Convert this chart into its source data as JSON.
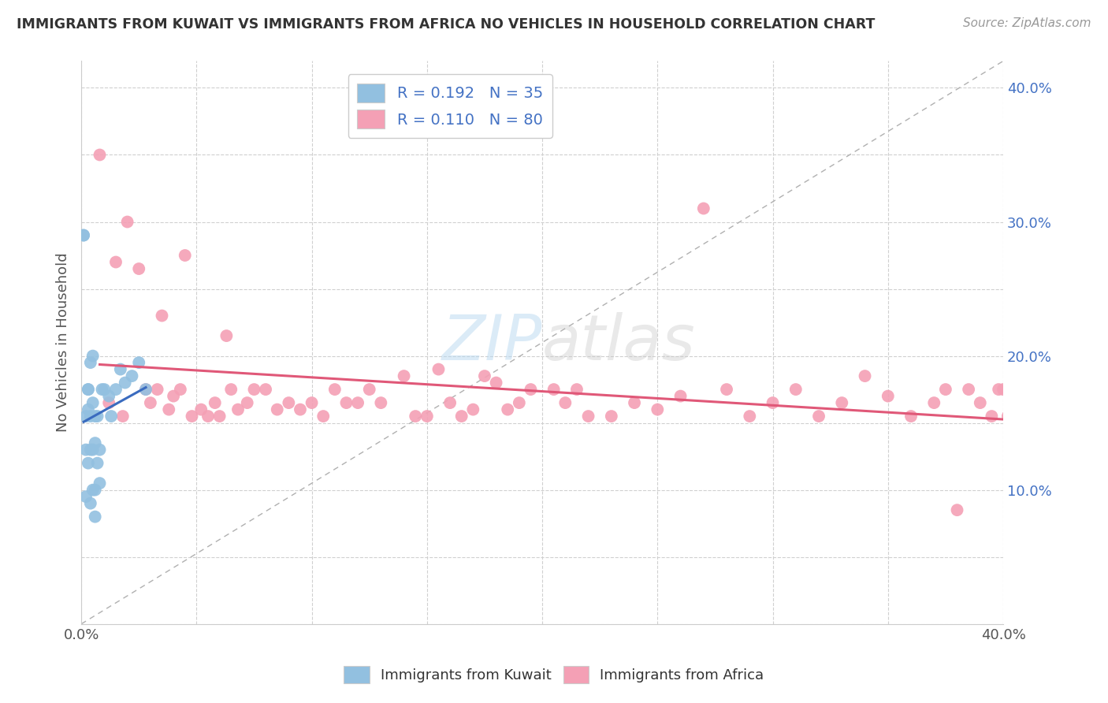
{
  "title": "IMMIGRANTS FROM KUWAIT VS IMMIGRANTS FROM AFRICA NO VEHICLES IN HOUSEHOLD CORRELATION CHART",
  "source": "Source: ZipAtlas.com",
  "ylabel": "No Vehicles in Household",
  "xlim": [
    0.0,
    0.4
  ],
  "ylim": [
    0.0,
    0.42
  ],
  "x_ticks": [
    0.0,
    0.05,
    0.1,
    0.15,
    0.2,
    0.25,
    0.3,
    0.35,
    0.4
  ],
  "y_ticks": [
    0.0,
    0.05,
    0.1,
    0.15,
    0.2,
    0.25,
    0.3,
    0.35,
    0.4
  ],
  "blue_color": "#92c0e0",
  "pink_color": "#f4a0b5",
  "blue_line_color": "#3a6bbf",
  "pink_line_color": "#e05878",
  "dashed_line_color": "#b0b0b0",
  "kuwait_R": 0.192,
  "kuwait_N": 35,
  "africa_R": 0.11,
  "africa_N": 80,
  "kuwait_scatter_x": [
    0.001,
    0.001,
    0.002,
    0.002,
    0.002,
    0.003,
    0.003,
    0.003,
    0.003,
    0.004,
    0.004,
    0.004,
    0.004,
    0.005,
    0.005,
    0.005,
    0.005,
    0.006,
    0.006,
    0.006,
    0.006,
    0.007,
    0.007,
    0.008,
    0.008,
    0.009,
    0.01,
    0.012,
    0.013,
    0.015,
    0.017,
    0.019,
    0.022,
    0.025,
    0.028
  ],
  "kuwait_scatter_y": [
    0.29,
    0.29,
    0.155,
    0.13,
    0.095,
    0.175,
    0.175,
    0.16,
    0.12,
    0.195,
    0.155,
    0.13,
    0.09,
    0.2,
    0.165,
    0.13,
    0.1,
    0.155,
    0.135,
    0.1,
    0.08,
    0.155,
    0.12,
    0.13,
    0.105,
    0.175,
    0.175,
    0.17,
    0.155,
    0.175,
    0.19,
    0.18,
    0.185,
    0.195,
    0.175
  ],
  "africa_scatter_x": [
    0.008,
    0.012,
    0.015,
    0.018,
    0.02,
    0.025,
    0.028,
    0.03,
    0.033,
    0.035,
    0.038,
    0.04,
    0.043,
    0.045,
    0.048,
    0.052,
    0.055,
    0.058,
    0.06,
    0.063,
    0.065,
    0.068,
    0.072,
    0.075,
    0.08,
    0.085,
    0.09,
    0.095,
    0.1,
    0.105,
    0.11,
    0.115,
    0.12,
    0.125,
    0.13,
    0.14,
    0.145,
    0.15,
    0.155,
    0.16,
    0.165,
    0.17,
    0.175,
    0.18,
    0.185,
    0.19,
    0.195,
    0.205,
    0.21,
    0.215,
    0.22,
    0.23,
    0.24,
    0.25,
    0.26,
    0.27,
    0.28,
    0.29,
    0.3,
    0.31,
    0.32,
    0.33,
    0.34,
    0.35,
    0.36,
    0.37,
    0.375,
    0.38,
    0.385,
    0.39,
    0.395,
    0.398,
    0.4,
    0.402,
    0.405,
    0.408,
    0.41,
    0.415,
    0.418,
    0.42
  ],
  "africa_scatter_y": [
    0.35,
    0.165,
    0.27,
    0.155,
    0.3,
    0.265,
    0.175,
    0.165,
    0.175,
    0.23,
    0.16,
    0.17,
    0.175,
    0.275,
    0.155,
    0.16,
    0.155,
    0.165,
    0.155,
    0.215,
    0.175,
    0.16,
    0.165,
    0.175,
    0.175,
    0.16,
    0.165,
    0.16,
    0.165,
    0.155,
    0.175,
    0.165,
    0.165,
    0.175,
    0.165,
    0.185,
    0.155,
    0.155,
    0.19,
    0.165,
    0.155,
    0.16,
    0.185,
    0.18,
    0.16,
    0.165,
    0.175,
    0.175,
    0.165,
    0.175,
    0.155,
    0.155,
    0.165,
    0.16,
    0.17,
    0.31,
    0.175,
    0.155,
    0.165,
    0.175,
    0.155,
    0.165,
    0.185,
    0.17,
    0.155,
    0.165,
    0.175,
    0.085,
    0.175,
    0.165,
    0.155,
    0.175,
    0.175,
    0.155,
    0.06,
    0.165,
    0.155,
    0.165,
    0.145,
    0.165
  ]
}
